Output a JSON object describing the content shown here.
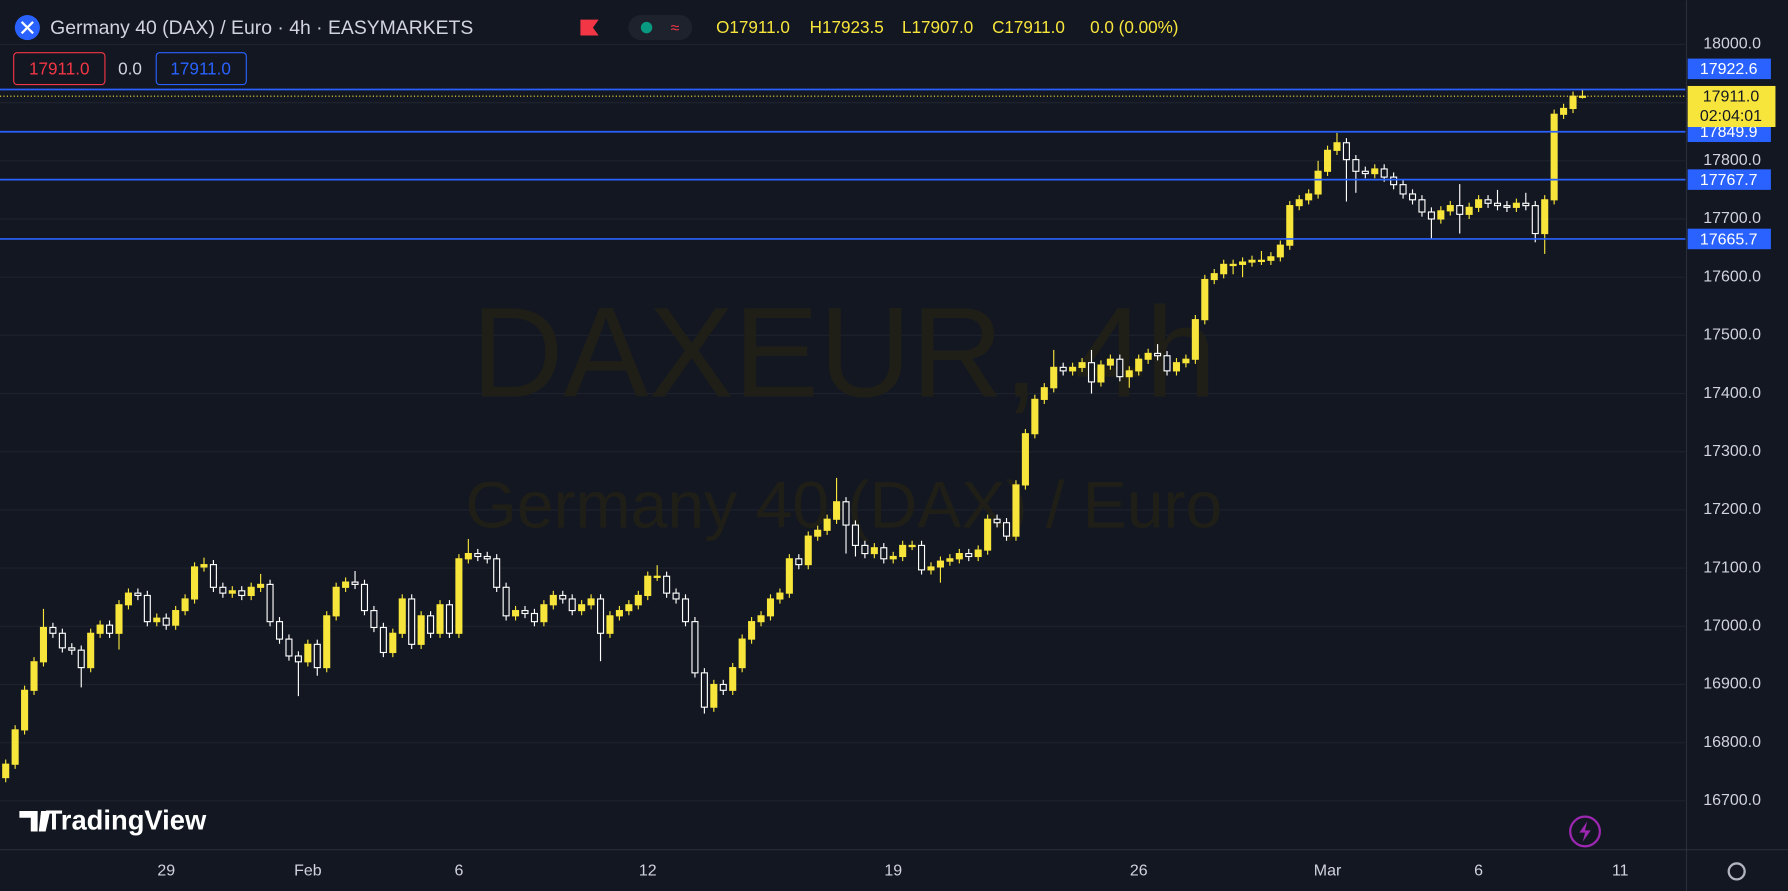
{
  "header": {
    "symbol": "Germany 40 (DAX) / Euro · 4h · EASYMARKETS",
    "ohlc": [
      "O17911.0",
      "H17923.5",
      "L17907.0",
      "C17911.0",
      "0.0 (0.00%)"
    ],
    "sell": "17911.0",
    "spread": "0.0",
    "buy": "17911.0"
  },
  "watermark": {
    "symbol": "DAXEUR, 4h",
    "description": "Germany 40 (DAX) / Euro"
  },
  "logo": "TradingView",
  "chart_data": {
    "type": "candlestick",
    "categories": [
      null,
      null,
      null,
      null,
      null,
      null,
      null,
      null,
      null,
      null,
      null,
      null,
      null,
      null,
      null,
      null,
      null,
      "29",
      null,
      null,
      null,
      null,
      null,
      null,
      null,
      null,
      null,
      null,
      null,
      null,
      null,
      null,
      "Feb",
      null,
      null,
      null,
      null,
      null,
      null,
      null,
      null,
      null,
      null,
      null,
      null,
      null,
      null,
      null,
      "6",
      null,
      null,
      null,
      null,
      null,
      null,
      null,
      null,
      null,
      null,
      null,
      null,
      null,
      null,
      null,
      null,
      null,
      null,
      null,
      "12",
      null,
      null,
      null,
      null,
      null,
      null,
      null,
      null,
      null,
      null,
      null,
      null,
      null,
      null,
      null,
      null,
      null,
      null,
      null,
      null,
      null,
      null,
      null,
      null,
      null,
      "19",
      null,
      null,
      null,
      null,
      null,
      null,
      null,
      null,
      null,
      null,
      null,
      null,
      null,
      null,
      null,
      null,
      null,
      null,
      null,
      null,
      null,
      null,
      null,
      null,
      null,
      "26",
      null,
      null,
      null,
      null,
      null,
      null,
      null,
      null,
      null,
      null,
      null,
      null,
      null,
      null,
      null,
      null,
      null,
      null,
      null,
      "Mar",
      null,
      null,
      null,
      null,
      null,
      null,
      null,
      null,
      null,
      null,
      null,
      null,
      null,
      null,
      null,
      "6",
      null,
      null,
      null,
      null,
      null,
      null,
      null,
      null,
      null,
      null,
      null,
      null,
      null,
      null,
      "11"
    ],
    "open": [
      16740,
      16763,
      16822,
      16890,
      16939,
      16998,
      16988,
      16963,
      16959,
      16929,
      16988,
      17002,
      16988,
      17037,
      17057,
      17053,
      17008,
      17014,
      17002,
      17027,
      17047,
      17102,
      17106,
      17067,
      17057,
      17061,
      17053,
      17067,
      17072,
      17008,
      16978,
      16949,
      16939,
      16969,
      16929,
      17018,
      17067,
      17076,
      17072,
      17027,
      16998,
      16955,
      16988,
      17047,
      16969,
      17018,
      16988,
      17037,
      16988,
      17116,
      17125,
      17120,
      17116,
      17067,
      17018,
      17027,
      17022,
      17008,
      17037,
      17053,
      17047,
      17027,
      17037,
      17047,
      16988,
      17018,
      17027,
      17037,
      17053,
      17086,
      17086,
      17057,
      17047,
      17008,
      16920,
      16861,
      16900,
      16890,
      16929,
      16978,
      17008,
      17018,
      17047,
      17057,
      17116,
      17106,
      17155,
      17165,
      17184,
      17214,
      17174,
      17139,
      17125,
      17135,
      17116,
      17120,
      17139,
      17139,
      17097,
      17102,
      17112,
      17116,
      17125,
      17120,
      17131,
      17184,
      17178,
      17155,
      17243,
      17331,
      17390,
      17410,
      17445,
      17439,
      17445,
      17453,
      17420,
      17449,
      17459,
      17429,
      17439,
      17459,
      17469,
      17465,
      17439,
      17453,
      17459,
      17527,
      17596,
      17606,
      17622,
      17622,
      17626,
      17629,
      17629,
      17635,
      17655,
      17723,
      17733,
      17743,
      17782,
      17818,
      17831,
      17802,
      17782,
      17778,
      17786,
      17772,
      17759,
      17743,
      17733,
      17712,
      17700,
      17714,
      17723,
      17708,
      17720,
      17733,
      17727,
      17723,
      17720,
      17727,
      17723,
      17675,
      17733,
      17880,
      17890,
      17911,
      null,
      null,
      null,
      null
    ],
    "high": [
      16771,
      16830,
      16898,
      16947,
      17030,
      17006,
      16996,
      16971,
      16967,
      16996,
      17010,
      17010,
      17045,
      17065,
      17065,
      17061,
      17022,
      17022,
      17035,
      17055,
      17110,
      17118,
      17114,
      17075,
      17069,
      17069,
      17075,
      17090,
      17080,
      17016,
      16986,
      16957,
      16977,
      16977,
      17026,
      17075,
      17084,
      17095,
      17080,
      17035,
      17006,
      16996,
      17055,
      17055,
      17026,
      17026,
      17045,
      17045,
      17124,
      17150,
      17133,
      17128,
      17124,
      17075,
      17035,
      17035,
      17030,
      17045,
      17061,
      17061,
      17055,
      17045,
      17055,
      17055,
      17026,
      17035,
      17045,
      17061,
      17094,
      17105,
      17094,
      17065,
      17055,
      17016,
      16928,
      16908,
      16908,
      16937,
      16986,
      17016,
      17026,
      17055,
      17065,
      17124,
      17124,
      17163,
      17173,
      17192,
      17255,
      17222,
      17182,
      17147,
      17143,
      17143,
      17128,
      17147,
      17147,
      17147,
      17110,
      17120,
      17124,
      17133,
      17133,
      17139,
      17192,
      17192,
      17186,
      17251,
      17339,
      17398,
      17418,
      17475,
      17453,
      17453,
      17461,
      17475,
      17457,
      17467,
      17467,
      17447,
      17467,
      17477,
      17485,
      17473,
      17461,
      17467,
      17535,
      17604,
      17614,
      17630,
      17630,
      17634,
      17637,
      17645,
      17643,
      17663,
      17731,
      17741,
      17751,
      17800,
      17826,
      17848,
      17839,
      17810,
      17790,
      17794,
      17794,
      17780,
      17767,
      17751,
      17741,
      17720,
      17722,
      17731,
      17760,
      17728,
      17741,
      17741,
      17750,
      17731,
      17735,
      17745,
      17731,
      17741,
      17888,
      17898,
      17919,
      17923.5,
      null,
      null,
      null,
      null
    ],
    "low": [
      16732,
      16755,
      16814,
      16882,
      16931,
      16980,
      16955,
      16951,
      16895,
      16921,
      16980,
      16980,
      16960,
      17029,
      17045,
      17000,
      17000,
      16994,
      16994,
      17019,
      17039,
      17094,
      17059,
      17049,
      17049,
      17045,
      17045,
      17059,
      17000,
      16970,
      16941,
      16880,
      16931,
      16915,
      16921,
      17010,
      17059,
      17064,
      17019,
      16990,
      16947,
      16947,
      16980,
      16961,
      16961,
      16980,
      16980,
      16980,
      16980,
      17108,
      17112,
      17108,
      17059,
      17010,
      17010,
      17014,
      17000,
      17000,
      17029,
      17039,
      17019,
      17019,
      17029,
      16940,
      16980,
      17010,
      17019,
      17029,
      17045,
      17078,
      17049,
      17039,
      17000,
      16912,
      16850,
      16853,
      16882,
      16882,
      16921,
      16970,
      17000,
      17010,
      17039,
      17049,
      17098,
      17098,
      17147,
      17157,
      17176,
      17125,
      17120,
      17117,
      17117,
      17108,
      17108,
      17112,
      17131,
      17089,
      17089,
      17075,
      17104,
      17108,
      17112,
      17112,
      17123,
      17170,
      17147,
      17147,
      17235,
      17323,
      17382,
      17402,
      17431,
      17431,
      17437,
      17400,
      17412,
      17441,
      17421,
      17410,
      17431,
      17451,
      17457,
      17431,
      17431,
      17445,
      17451,
      17519,
      17588,
      17598,
      17605,
      17600,
      17618,
      17621,
      17621,
      17627,
      17647,
      17715,
      17725,
      17735,
      17774,
      17810,
      17730,
      17745,
      17770,
      17770,
      17764,
      17751,
      17735,
      17725,
      17704,
      17665,
      17692,
      17706,
      17675,
      17700,
      17712,
      17719,
      17715,
      17712,
      17712,
      17715,
      17660,
      17640,
      17725,
      17872,
      17882,
      17907,
      null,
      null,
      null,
      null
    ],
    "close": [
      16763,
      16822,
      16890,
      16939,
      16998,
      16988,
      16963,
      16959,
      16929,
      16988,
      17002,
      16988,
      17037,
      17057,
      17053,
      17008,
      17014,
      17002,
      17027,
      17047,
      17102,
      17106,
      17067,
      17057,
      17061,
      17053,
      17067,
      17072,
      17008,
      16978,
      16949,
      16939,
      16969,
      16929,
      17018,
      17067,
      17076,
      17072,
      17027,
      16998,
      16955,
      16988,
      17047,
      16969,
      17018,
      16988,
      17037,
      16988,
      17116,
      17125,
      17120,
      17116,
      17067,
      17018,
      17027,
      17022,
      17008,
      17037,
      17053,
      17047,
      17027,
      17037,
      17047,
      16988,
      17018,
      17027,
      17037,
      17053,
      17086,
      17086,
      17057,
      17047,
      17008,
      16920,
      16861,
      16900,
      16890,
      16929,
      16978,
      17008,
      17018,
      17047,
      17057,
      17116,
      17106,
      17155,
      17165,
      17184,
      17214,
      17174,
      17139,
      17125,
      17135,
      17116,
      17120,
      17139,
      17139,
      17097,
      17102,
      17112,
      17116,
      17125,
      17120,
      17131,
      17184,
      17178,
      17155,
      17243,
      17331,
      17390,
      17410,
      17445,
      17439,
      17445,
      17453,
      17420,
      17449,
      17459,
      17429,
      17439,
      17459,
      17469,
      17465,
      17439,
      17453,
      17459,
      17527,
      17596,
      17606,
      17622,
      17622,
      17626,
      17629,
      17629,
      17635,
      17655,
      17723,
      17733,
      17743,
      17782,
      17818,
      17831,
      17802,
      17782,
      17778,
      17786,
      17772,
      17759,
      17743,
      17733,
      17712,
      17700,
      17714,
      17723,
      17708,
      17720,
      17733,
      17727,
      17723,
      17720,
      17727,
      17723,
      17675,
      17733,
      17880,
      17890,
      17911,
      17911,
      null,
      null,
      null,
      null
    ],
    "up_color": "#f7e53b",
    "down_color": "#ffffff",
    "ylim": [
      16616,
      18076
    ],
    "yticks": [
      {
        "value": 18000,
        "label": "18000.0"
      },
      {
        "value": 17900,
        "label": "17900.0"
      },
      {
        "value": 17800,
        "label": "17800.0"
      },
      {
        "value": 17700,
        "label": "17700.0"
      },
      {
        "value": 17600,
        "label": "17600.0"
      },
      {
        "value": 17500,
        "label": "17500.0"
      },
      {
        "value": 17400,
        "label": "17400.0"
      },
      {
        "value": 17300,
        "label": "17300.0"
      },
      {
        "value": 17200,
        "label": "17200.0"
      },
      {
        "value": 17100,
        "label": "17100.0"
      },
      {
        "value": 17000,
        "label": "17000.0"
      },
      {
        "value": 16900,
        "label": "16900.0"
      },
      {
        "value": 16800,
        "label": "16800.0"
      },
      {
        "value": 16700,
        "label": "16700.0"
      }
    ],
    "grid": true,
    "levels": [
      17922.6,
      17849.9,
      17767.7,
      17665.7
    ],
    "level_color": "#2962ff",
    "last_price": {
      "value": 17911,
      "label": "17911.0"
    },
    "countdown": "02:04:01"
  }
}
